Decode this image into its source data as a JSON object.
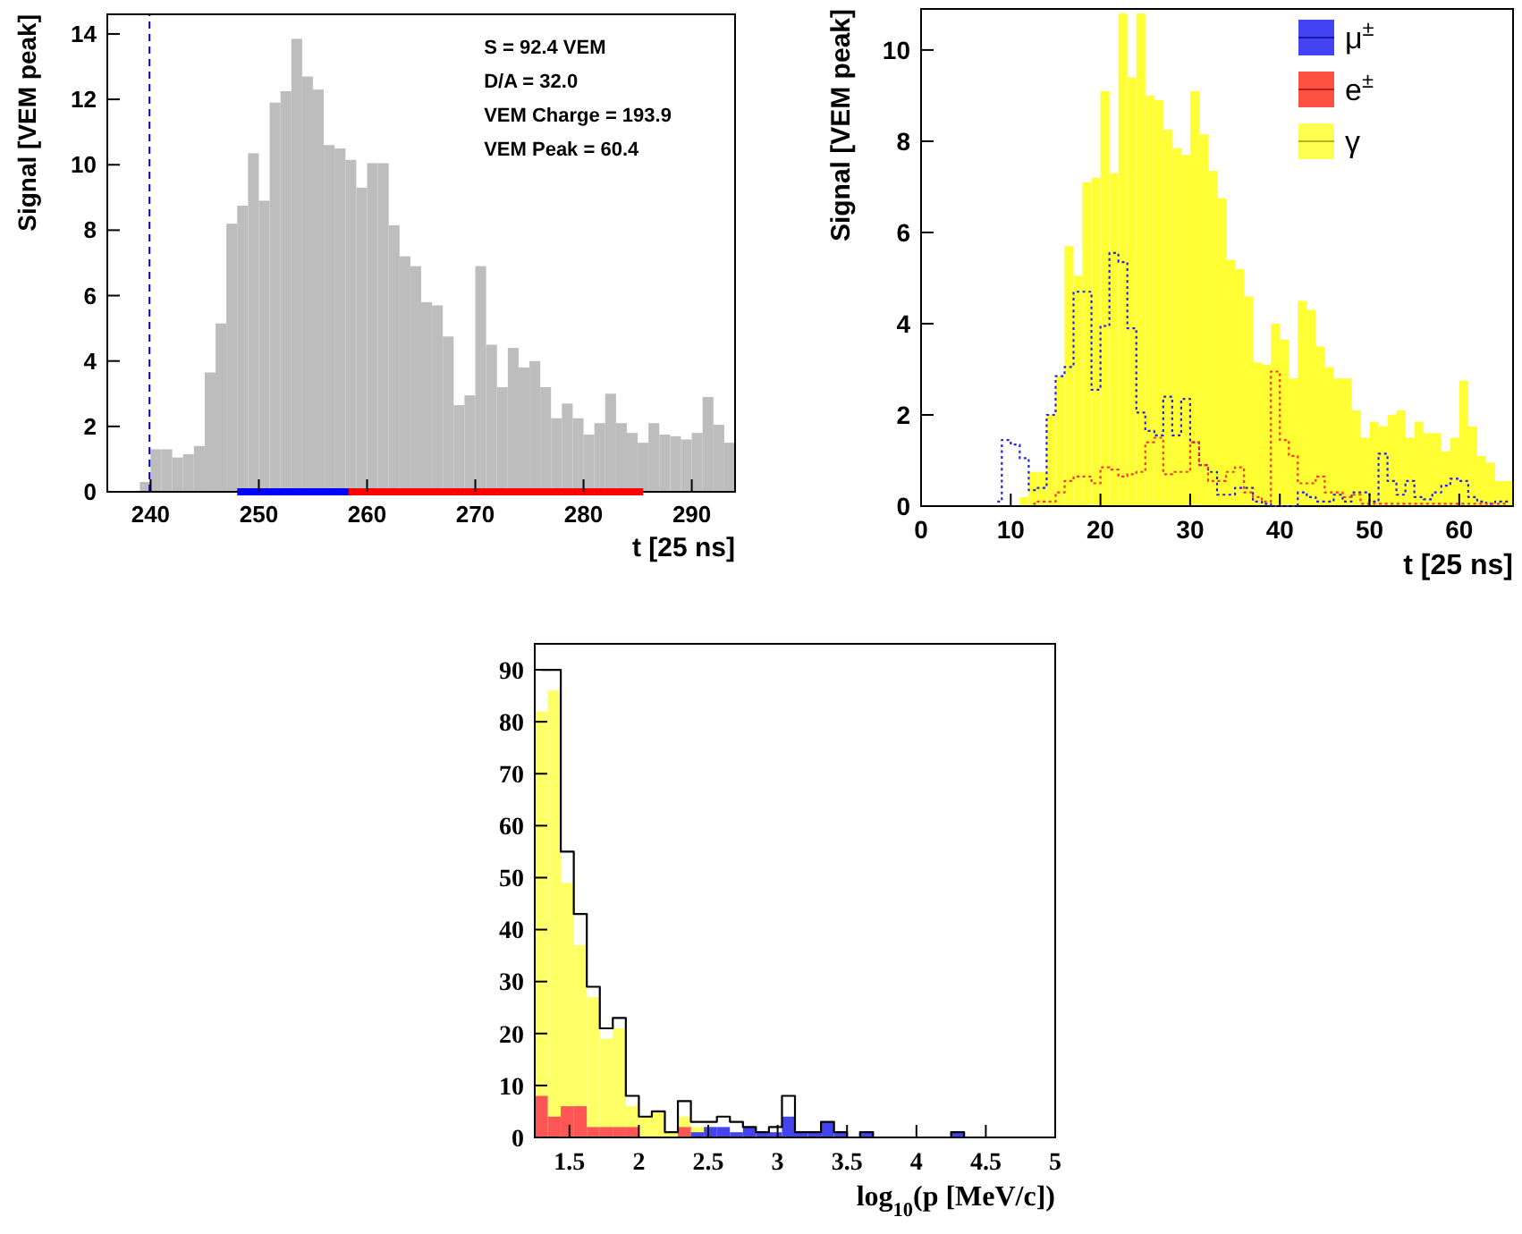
{
  "chart_data": [
    {
      "type": "histogram",
      "xlabel": "t [25 ns]",
      "ylabel": "Signal [VEM peak]",
      "bins": [
        239,
        240,
        241,
        242,
        243,
        244,
        245,
        246,
        247,
        248,
        249,
        250,
        251,
        252,
        253,
        254,
        255,
        256,
        257,
        258,
        259,
        260,
        261,
        262,
        263,
        264,
        265,
        266,
        267,
        268,
        269,
        270,
        271,
        272,
        273,
        274,
        275,
        276,
        277,
        278,
        279,
        280,
        281,
        282,
        283,
        284,
        285,
        286,
        287,
        288,
        289,
        290,
        291,
        292,
        293,
        294
      ],
      "series": [
        {
          "color": "#bdbdbd",
          "values": [
            0.3,
            1.3,
            1.3,
            1.05,
            1.15,
            1.4,
            3.65,
            5.15,
            8.2,
            8.75,
            10.35,
            8.9,
            11.9,
            12.25,
            13.85,
            12.7,
            12.3,
            10.6,
            10.5,
            10.15,
            9.3,
            10.05,
            10.05,
            8.15,
            7.2,
            6.9,
            5.8,
            5.7,
            4.75,
            2.65,
            2.95,
            6.9,
            4.5,
            3.2,
            4.4,
            3.8,
            4.0,
            3.2,
            2.25,
            2.7,
            2.25,
            1.75,
            2.1,
            3.0,
            2.1,
            1.8,
            1.5,
            2.1,
            1.75,
            1.7,
            1.6,
            1.8,
            2.9,
            2.05,
            1.5
          ]
        },
        {
          "type": "line",
          "color": "#0000ff",
          "x": [
            248,
            258.3
          ],
          "values": [
            0,
            0
          ]
        },
        {
          "type": "line",
          "color": "#ff0000",
          "x": [
            258.3,
            285.5
          ],
          "values": [
            0,
            0
          ]
        }
      ],
      "xlim": [
        236,
        294
      ],
      "ylim": [
        0,
        14.6
      ],
      "xticks": [
        240,
        250,
        260,
        270,
        280,
        290
      ],
      "yticks": [
        0,
        2,
        4,
        6,
        8,
        10,
        12,
        14
      ],
      "annotations": [
        "S = 92.4 VEM",
        "D/A = 32.0",
        "VEM Charge =  193.9",
        "VEM Peak = 60.4"
      ],
      "ref_lines": [
        {
          "axis": "x",
          "value": 239.9,
          "color": "#0000cc",
          "line_style": "dashed"
        }
      ]
    },
    {
      "type": "histogram",
      "xlabel": "t [25 ns]",
      "ylabel": "Signal [VEM peak]",
      "legend": "top right",
      "bins": [
        0,
        1,
        2,
        3,
        4,
        5,
        6,
        7,
        8,
        9,
        10,
        11,
        12,
        13,
        14,
        15,
        16,
        17,
        18,
        19,
        20,
        21,
        22,
        23,
        24,
        25,
        26,
        27,
        28,
        29,
        30,
        31,
        32,
        33,
        34,
        35,
        36,
        37,
        38,
        39,
        40,
        41,
        42,
        43,
        44,
        45,
        46,
        47,
        48,
        49,
        50,
        51,
        52,
        53,
        54,
        55,
        56,
        57,
        58,
        59,
        60,
        61,
        62,
        63,
        64,
        65,
        66
      ],
      "xlim": [
        0,
        66
      ],
      "ylim": [
        0,
        10.9
      ],
      "xticks": [
        0,
        10,
        20,
        30,
        40,
        50,
        60
      ],
      "yticks": [
        0,
        2,
        4,
        6,
        8,
        10
      ],
      "series": [
        {
          "name": "μ$^{±}$",
          "type": "step",
          "color": "#2222ee",
          "line_style": "dotted",
          "x": [
            8.5,
            9.5,
            10.5,
            11.5,
            12.5,
            13.5,
            14.5,
            15.5,
            16.5,
            17.5,
            18.5,
            19.5,
            20.5,
            21.5,
            22.5,
            23.5,
            24.5,
            25.5,
            26.5,
            27.5,
            28.5,
            29.5,
            30.5,
            31.5,
            32.5,
            33.5,
            34.5,
            35.5,
            36.5,
            37.5,
            38.5,
            39.5,
            40.5,
            41.5,
            42.5,
            43.5,
            44.5,
            45.5,
            46.5,
            47.5,
            48.5,
            49.5,
            50.5,
            51.5,
            52.5,
            53.5,
            54.5,
            55.5,
            56.5,
            57.5,
            58.5,
            59.5,
            60.5,
            61.5,
            62.5,
            63.5,
            64.5,
            65.5
          ],
          "values": [
            0.1,
            1.45,
            1.35,
            1.05,
            0.35,
            0.4,
            2.0,
            2.85,
            3.05,
            4.7,
            4.7,
            2.55,
            3.95,
            5.55,
            5.35,
            3.9,
            2.05,
            1.65,
            1.55,
            2.4,
            1.55,
            2.35,
            1.4,
            0.9,
            0.75,
            0.25,
            0.25,
            0.4,
            0.4,
            0.1,
            0.05,
            0,
            0,
            0,
            0.3,
            0.2,
            0.1,
            0.1,
            0.25,
            0.1,
            0.3,
            0.3,
            0.1,
            1.15,
            0.55,
            0.25,
            0.55,
            0.2,
            0.15,
            0.3,
            0.45,
            0.6,
            0.55,
            0.2,
            0.1,
            0.05,
            0.1,
            0.1
          ]
        },
        {
          "name": "e$^{±}$",
          "type": "step",
          "color": "#ff3322",
          "line_style": "dotted",
          "x": [
            12.5,
            13.5,
            14.5,
            15.5,
            16.5,
            17.5,
            18.5,
            19.5,
            20.5,
            21.5,
            22.5,
            23.5,
            24.5,
            25.5,
            26.5,
            27.5,
            28.5,
            29.5,
            30.5,
            31.5,
            32.5,
            33.5,
            34.5,
            35.5,
            36.5,
            37.5,
            38.5,
            39.5,
            40.5,
            41.5,
            42.5,
            43.5,
            44.5,
            45.5,
            46.5,
            47.5,
            48.5,
            49.5,
            50.5,
            51.5,
            52.5,
            53.5,
            54.5,
            55.5,
            56.5,
            57.5,
            58.5,
            59.5,
            60.5,
            61.5,
            62.5,
            63.5,
            64.5,
            65.5
          ],
          "values": [
            0.05,
            0.1,
            0.1,
            0.3,
            0.55,
            0.65,
            0.65,
            0.5,
            0.85,
            0.8,
            0.65,
            0.7,
            0.75,
            1.4,
            1.5,
            0.7,
            0.75,
            0.75,
            1.4,
            0.9,
            0.55,
            0.55,
            0.75,
            0.85,
            0.3,
            0.2,
            0.1,
            2.95,
            1.45,
            1.1,
            0.5,
            0.5,
            0.65,
            0.3,
            0.3,
            0.2,
            0.25,
            0.05,
            0.05,
            0.05,
            0.05,
            0.05,
            0.05,
            0.05,
            0.05,
            0.05,
            0.05,
            0.05,
            0.05,
            0.05,
            0.05,
            0.05,
            0.05,
            0.05
          ]
        },
        {
          "name": "γ",
          "color": "#ffff33",
          "values": [
            0,
            0,
            0,
            0,
            0,
            0,
            0,
            0,
            0,
            0,
            0,
            0.2,
            0.75,
            0.75,
            2.0,
            2.85,
            5.7,
            5.05,
            7.1,
            7.2,
            9.1,
            7.3,
            10.8,
            9.4,
            10.8,
            9.0,
            8.9,
            8.25,
            7.85,
            7.7,
            9.1,
            8.15,
            7.35,
            6.75,
            5.4,
            5.2,
            4.6,
            3.15,
            3.1,
            4.0,
            3.65,
            2.8,
            4.5,
            4.3,
            3.5,
            3.05,
            2.8,
            2.8,
            2.1,
            1.5,
            1.85,
            1.75,
            2.0,
            2.1,
            1.5,
            1.85,
            1.6,
            1.6,
            1.2,
            1.5,
            2.75,
            1.75,
            1.1,
            0.95,
            0.55,
            0.55
          ]
        }
      ]
    },
    {
      "type": "histogram",
      "xlabel": "log$_{10}$(p [MeV/c])",
      "bins": [
        1.25,
        1.34375,
        1.4375,
        1.53125,
        1.625,
        1.71875,
        1.8125,
        1.90625,
        2,
        2.09375,
        2.1875,
        2.28125,
        2.375,
        2.46875,
        2.5625,
        2.65625,
        2.75,
        2.84375,
        2.9375,
        3.03125,
        3.125,
        3.21875,
        3.3125,
        3.40625,
        3.5,
        3.59375,
        3.6875,
        3.78125,
        3.875,
        3.96875,
        4.0625,
        4.15625,
        4.25,
        4.34375,
        4.4375,
        4.53125,
        4.625,
        4.71875,
        4.8125,
        4.90625,
        5
      ],
      "xlim": [
        1.25,
        5
      ],
      "ylim": [
        0,
        95
      ],
      "xticks": [
        1.5,
        2,
        2.5,
        3,
        3.5,
        4,
        4.5,
        5
      ],
      "yticks": [
        0,
        10,
        20,
        30,
        40,
        50,
        60,
        70,
        80,
        90
      ],
      "series": [
        {
          "color": "#ffff66",
          "values": [
            82,
            86,
            49,
            37,
            27,
            19,
            21,
            6,
            4,
            5,
            1,
            4,
            2,
            null,
            null,
            0,
            0,
            0,
            0,
            0,
            0,
            0,
            0,
            0,
            0,
            0,
            0,
            0,
            0,
            0,
            0,
            0,
            0,
            0,
            0,
            0,
            0,
            0,
            0,
            0
          ]
        },
        {
          "color": "#ff5555",
          "values": [
            8,
            4,
            6,
            6,
            2,
            2,
            2,
            2,
            0,
            0,
            0,
            2,
            0,
            0,
            0,
            0,
            0,
            0,
            0,
            0,
            0,
            0,
            0,
            0,
            0,
            0,
            0,
            0,
            0,
            0,
            0,
            0,
            0,
            0,
            0,
            0,
            0,
            0,
            0,
            0
          ]
        },
        {
          "color": "#4444ee",
          "values": [
            0,
            0,
            0,
            0,
            0,
            0,
            0,
            0,
            0,
            0,
            0,
            0,
            1,
            2,
            2,
            1,
            2,
            1,
            1,
            4,
            1,
            1,
            3,
            1,
            0,
            1,
            0,
            0,
            0,
            0,
            0,
            0,
            1,
            0,
            0,
            0,
            0,
            0,
            0,
            0
          ]
        },
        {
          "type": "step",
          "color": "#000000",
          "x": [
            1.296875,
            1.390625,
            1.484375,
            1.578125,
            1.671875,
            1.765625,
            1.859375,
            1.953125,
            2.046875,
            2.140625,
            2.234375,
            2.328125,
            2.421875,
            2.515625,
            2.609375,
            2.703125,
            2.796875,
            2.890625,
            2.984375,
            3.078125,
            3.171875,
            3.265625,
            3.359375,
            3.453125,
            3.546875,
            3.640625,
            3.734375,
            3.828125,
            3.921875,
            4.015625,
            4.109375,
            4.203125,
            4.296875,
            4.390625,
            4.484375,
            4.578125,
            4.671875,
            4.765625,
            4.859375,
            4.953125
          ],
          "values": [
            90,
            90,
            55,
            43,
            29,
            21,
            23,
            8,
            4,
            5,
            1,
            7,
            3,
            3,
            4,
            3,
            2,
            1,
            2,
            8,
            1,
            1,
            3,
            1,
            0,
            1,
            0,
            0,
            0,
            0,
            0,
            0,
            1,
            0,
            0,
            0,
            0,
            0,
            0,
            0
          ]
        }
      ]
    }
  ]
}
